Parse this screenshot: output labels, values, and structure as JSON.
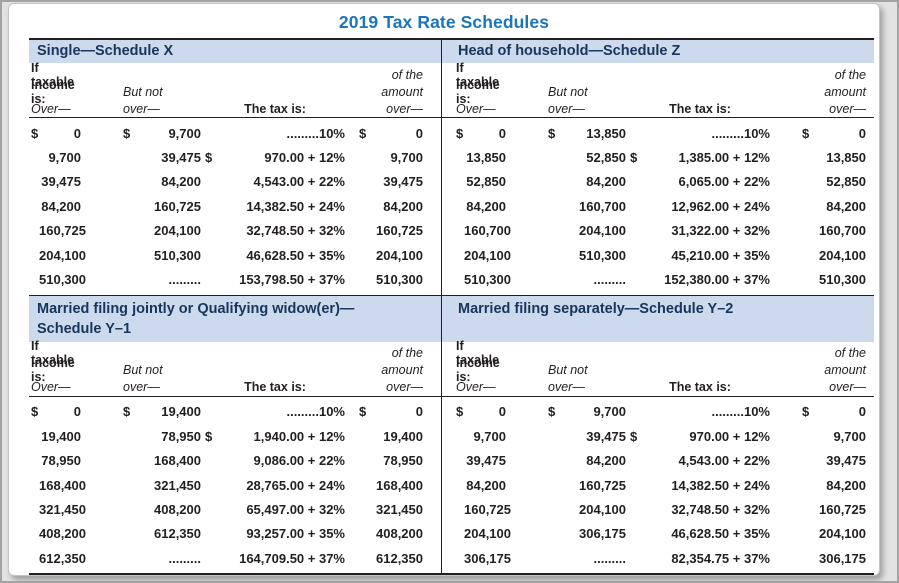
{
  "title": "2019 Tax Rate Schedules",
  "colors": {
    "accent_blue": "#1b75bc",
    "band_blue": "#cdd9ec",
    "header_navy": "#17365d",
    "text": "#231f20"
  },
  "column_headers": {
    "if_taxable": "If taxable",
    "income_is": "income is:",
    "over_left": "Over—",
    "but_not": "But not",
    "over_mid": "over—",
    "tax_is": "The tax is:",
    "of_the": "of the",
    "amount": "amount",
    "over_right": "over—"
  },
  "schedules": [
    {
      "name": "single",
      "title_line1": "Single—Schedule X",
      "title_line2": "",
      "rows": [
        [
          "$",
          "0",
          "$",
          "9,700",
          "",
          ".........10%",
          "$",
          "0"
        ],
        [
          "",
          "9,700",
          "",
          "39,475",
          "$",
          "970.00 + 12%",
          "",
          "9,700"
        ],
        [
          "",
          "39,475",
          "",
          "84,200",
          "",
          "4,543.00 + 22%",
          "",
          "39,475"
        ],
        [
          "",
          "84,200",
          "",
          "160,725",
          "",
          "14,382.50 + 24%",
          "",
          "84,200"
        ],
        [
          "",
          "160,725",
          "",
          "204,100",
          "",
          "32,748.50 + 32%",
          "",
          "160,725"
        ],
        [
          "",
          "204,100",
          "",
          "510,300",
          "",
          "46,628.50 + 35%",
          "",
          "204,100"
        ],
        [
          "",
          "510,300",
          "",
          ".........",
          "",
          "153,798.50 + 37%",
          "",
          "510,300"
        ]
      ]
    },
    {
      "name": "head-of-household",
      "title_line1": "Head of household—Schedule Z",
      "title_line2": "",
      "rows": [
        [
          "$",
          "0",
          "$",
          "13,850",
          "",
          ".........10%",
          "$",
          "0"
        ],
        [
          "",
          "13,850",
          "",
          "52,850",
          "$",
          "1,385.00 + 12%",
          "",
          "13,850"
        ],
        [
          "",
          "52,850",
          "",
          "84,200",
          "",
          "6,065.00 + 22%",
          "",
          "52,850"
        ],
        [
          "",
          "84,200",
          "",
          "160,700",
          "",
          "12,962.00 + 24%",
          "",
          "84,200"
        ],
        [
          "",
          "160,700",
          "",
          "204,100",
          "",
          "31,322.00 + 32%",
          "",
          "160,700"
        ],
        [
          "",
          "204,100",
          "",
          "510,300",
          "",
          "45,210.00 + 35%",
          "",
          "204,100"
        ],
        [
          "",
          "510,300",
          "",
          ".........",
          "",
          "152,380.00 + 37%",
          "",
          "510,300"
        ]
      ]
    },
    {
      "name": "married-filing-jointly",
      "title_line1": "Married filing jointly or Qualifying widow(er)—",
      "title_line2": "Schedule Y–1",
      "rows": [
        [
          "$",
          "0",
          "$",
          "19,400",
          "",
          ".........10%",
          "$",
          "0"
        ],
        [
          "",
          "19,400",
          "",
          "78,950",
          "$",
          "1,940.00 + 12%",
          "",
          "19,400"
        ],
        [
          "",
          "78,950",
          "",
          "168,400",
          "",
          "9,086.00 + 22%",
          "",
          "78,950"
        ],
        [
          "",
          "168,400",
          "",
          "321,450",
          "",
          "28,765.00 + 24%",
          "",
          "168,400"
        ],
        [
          "",
          "321,450",
          "",
          "408,200",
          "",
          "65,497.00 + 32%",
          "",
          "321,450"
        ],
        [
          "",
          "408,200",
          "",
          "612,350",
          "",
          "93,257.00 + 35%",
          "",
          "408,200"
        ],
        [
          "",
          "612,350",
          "",
          ".........",
          "",
          "164,709.50 + 37%",
          "",
          "612,350"
        ]
      ]
    },
    {
      "name": "married-filing-separately",
      "title_line1": "Married filing separately—Schedule Y–2",
      "title_line2": "",
      "rows": [
        [
          "$",
          "0",
          "$",
          "9,700",
          "",
          ".........10%",
          "$",
          "0"
        ],
        [
          "",
          "9,700",
          "",
          "39,475",
          "$",
          "970.00 + 12%",
          "",
          "9,700"
        ],
        [
          "",
          "39,475",
          "",
          "84,200",
          "",
          "4,543.00 + 22%",
          "",
          "39,475"
        ],
        [
          "",
          "84,200",
          "",
          "160,725",
          "",
          "14,382.50 + 24%",
          "",
          "84,200"
        ],
        [
          "",
          "160,725",
          "",
          "204,100",
          "",
          "32,748.50 + 32%",
          "",
          "160,725"
        ],
        [
          "",
          "204,100",
          "",
          "306,175",
          "",
          "46,628.50 + 35%",
          "",
          "204,100"
        ],
        [
          "",
          "306,175",
          "",
          ".........",
          "",
          "82,354.75 + 37%",
          "",
          "306,175"
        ]
      ]
    }
  ]
}
